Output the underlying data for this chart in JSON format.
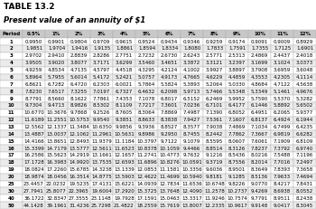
{
  "title": "TABLE 13.2",
  "subtitle": "Present value of an annuity of $1",
  "columns": [
    "Period",
    "0.5%",
    "1%",
    "2%",
    "3%",
    "4%",
    "5%",
    "6%",
    "7%",
    "8%",
    "9%",
    "10%",
    "11%",
    "12%"
  ],
  "rows": [
    [
      1,
      0.995,
      0.9901,
      0.9804,
      0.9709,
      0.9615,
      0.9524,
      0.9434,
      0.9346,
      0.9259,
      0.9174,
      0.9091,
      0.9009,
      0.8929
    ],
    [
      2,
      1.9851,
      1.9704,
      1.9416,
      1.9135,
      1.8861,
      1.8594,
      1.8334,
      1.808,
      1.7833,
      1.7591,
      1.7355,
      1.7125,
      1.6901
    ],
    [
      3,
      2.9702,
      2.941,
      2.8839,
      2.8286,
      2.7751,
      2.7232,
      2.673,
      2.6243,
      2.5771,
      2.5313,
      2.4869,
      2.4437,
      2.4018
    ],
    [
      4,
      3.9505,
      3.902,
      3.8077,
      3.7171,
      3.6299,
      3.546,
      3.4651,
      3.3872,
      3.3121,
      3.2397,
      3.1699,
      3.1024,
      3.0373
    ],
    [
      5,
      4.9259,
      4.8534,
      4.7135,
      4.5797,
      4.4518,
      4.3295,
      4.2124,
      4.1002,
      3.9927,
      3.8897,
      3.7908,
      3.6959,
      3.6048
    ],
    [
      6,
      5.8964,
      5.7955,
      5.6014,
      5.4172,
      5.2421,
      5.0757,
      4.9173,
      4.7665,
      4.6229,
      4.4859,
      4.3553,
      4.2305,
      4.1114
    ],
    [
      7,
      6.8621,
      6.7282,
      6.472,
      6.2303,
      6.0021,
      5.7864,
      5.5824,
      5.3893,
      5.2064,
      5.033,
      4.8684,
      4.7122,
      4.5638
    ],
    [
      8,
      7.823,
      7.6517,
      7.3255,
      7.0197,
      6.7327,
      6.4632,
      6.2098,
      5.9713,
      5.7466,
      5.5348,
      5.3349,
      5.1461,
      4.9676
    ],
    [
      9,
      8.7791,
      8.566,
      8.1622,
      7.7861,
      7.4353,
      7.1078,
      6.8017,
      6.5152,
      6.2469,
      5.9952,
      5.759,
      5.537,
      5.3282
    ],
    [
      10,
      9.7304,
      9.4713,
      8.9826,
      8.5302,
      8.1109,
      7.7217,
      7.3601,
      7.0236,
      6.7101,
      6.4177,
      6.1446,
      5.8892,
      5.6502
    ],
    [
      11,
      10.677,
      10.3676,
      9.7868,
      9.2526,
      8.7605,
      8.3064,
      7.8869,
      7.4987,
      7.139,
      6.8052,
      6.4951,
      6.2065,
      5.9377
    ],
    [
      12,
      11.6189,
      11.2551,
      10.5753,
      9.954,
      9.3851,
      8.8633,
      8.3838,
      7.9427,
      7.5361,
      7.1607,
      6.8137,
      6.4924,
      6.1944
    ],
    [
      13,
      12.5562,
      12.1337,
      11.3484,
      10.635,
      9.9856,
      9.3936,
      8.8527,
      8.3577,
      7.9038,
      7.4869,
      7.1034,
      6.7499,
      6.4235
    ],
    [
      14,
      13.4887,
      13.0037,
      12.1062,
      11.2961,
      10.5631,
      9.8986,
      9.295,
      8.7455,
      8.2442,
      7.7862,
      7.3667,
      6.9819,
      6.6282
    ],
    [
      15,
      14.4166,
      13.8651,
      12.8493,
      11.9379,
      11.1184,
      10.3797,
      9.7122,
      9.1079,
      8.5595,
      8.0607,
      7.6061,
      7.1909,
      6.8109
    ],
    [
      16,
      15.3399,
      14.7179,
      13.5777,
      12.5611,
      11.6523,
      10.8378,
      10.1059,
      9.4466,
      8.8514,
      8.3126,
      7.8237,
      7.3792,
      6.974
    ],
    [
      17,
      16.2586,
      15.5623,
      14.2919,
      13.1661,
      12.1657,
      11.2741,
      10.4773,
      9.7632,
      9.1216,
      8.5436,
      8.0216,
      7.5488,
      7.1196
    ],
    [
      18,
      17.1728,
      16.3983,
      14.992,
      13.7535,
      12.6593,
      11.6896,
      10.8276,
      10.0591,
      9.3719,
      8.7556,
      8.2014,
      7.7016,
      7.2497
    ],
    [
      19,
      18.0824,
      17.226,
      15.6785,
      14.3238,
      13.1339,
      12.0853,
      11.1581,
      10.3356,
      9.6036,
      8.9501,
      8.3649,
      7.8393,
      7.3658
    ],
    [
      20,
      18.9874,
      18.0456,
      16.3514,
      14.8775,
      13.5903,
      12.4622,
      11.4699,
      10.594,
      9.8181,
      9.1285,
      8.5136,
      7.9633,
      7.4694
    ],
    [
      25,
      23.4457,
      22.0232,
      19.5235,
      17.4131,
      15.6221,
      14.0939,
      12.7834,
      11.6536,
      10.6748,
      9.8226,
      9.077,
      8.4217,
      7.8431
    ],
    [
      30,
      27.7941,
      25.8077,
      22.3965,
      19.6004,
      17.292,
      15.3725,
      13.7648,
      12.409,
      11.2578,
      10.2737,
      9.4269,
      8.6938,
      8.0552
    ],
    [
      40,
      36.1722,
      32.8347,
      27.3555,
      23.1148,
      19.7928,
      17.1591,
      15.0463,
      13.3317,
      11.9246,
      10.7574,
      9.7791,
      8.9511,
      8.2438
    ],
    [
      50,
      44.1428,
      39.1961,
      31.4236,
      25.7298,
      21.4822,
      18.2559,
      15.7619,
      13.8007,
      12.2335,
      10.9617,
      9.9148,
      9.0417,
      8.3045
    ]
  ],
  "header_bg": "#c8c8c8",
  "alt_row_bg": "#ebebeb",
  "white_row_bg": "#ffffff",
  "border_color": "#aaaaaa",
  "title_fontsize": 6.5,
  "subtitle_fontsize": 6.0,
  "table_fontsize": 4.0
}
